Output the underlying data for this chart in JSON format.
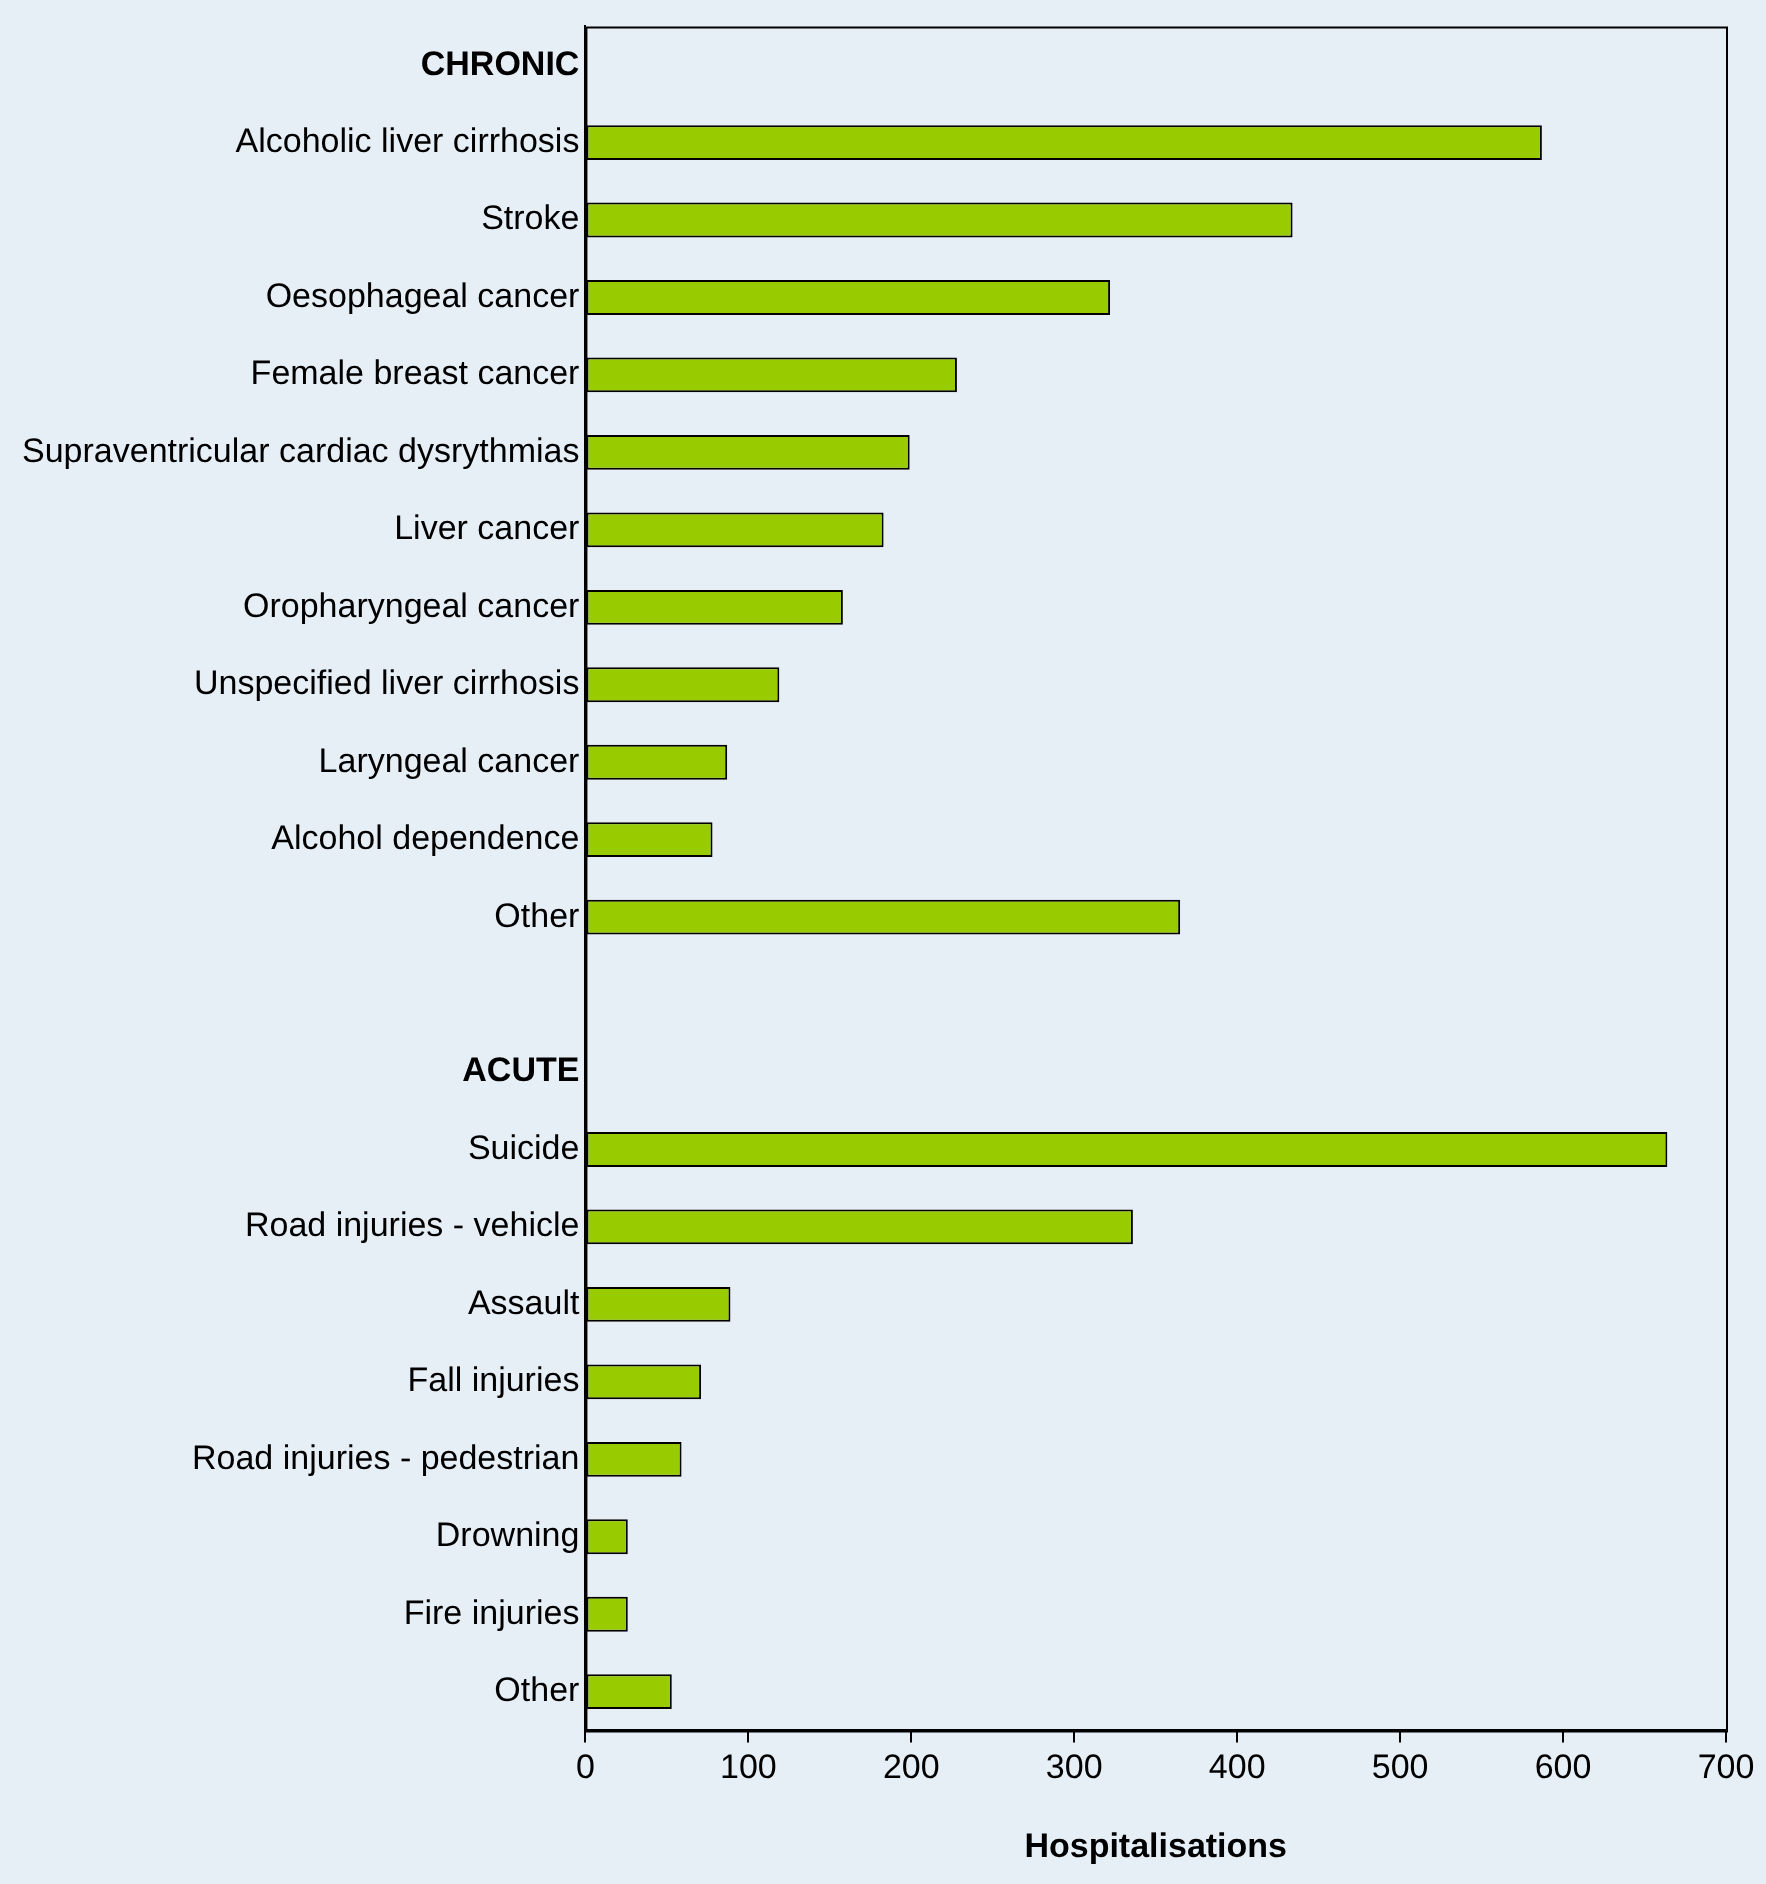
{
  "chart_data": {
    "type": "bar",
    "orientation": "horizontal",
    "xlabel": "Hospitalisations",
    "categories": [
      "CHRONIC",
      "Alcoholic liver cirrhosis",
      "Stroke",
      "Oesophageal cancer",
      "Female breast cancer",
      "Supraventricular cardiac dysrythmias",
      "Liver cancer",
      "Oropharyngeal cancer",
      "Unspecified liver cirrhosis",
      "Laryngeal cancer",
      "Alcohol dependence",
      "Other",
      null,
      "ACUTE",
      "Suicide",
      "Road injuries - vehicle",
      "Assault",
      "Fall injuries",
      "Road injuries - pedestrian",
      "Drowning",
      "Fire injuries",
      "Other"
    ],
    "values": [
      null,
      587,
      434,
      322,
      228,
      199,
      183,
      158,
      119,
      87,
      78,
      365,
      null,
      null,
      664,
      336,
      89,
      71,
      59,
      26,
      26,
      53
    ],
    "color": "#99cc00",
    "xlim": [
      0,
      700
    ],
    "xticks": [
      0,
      100,
      200,
      300,
      400,
      500,
      600,
      700
    ],
    "grid": false,
    "legend": false
  }
}
